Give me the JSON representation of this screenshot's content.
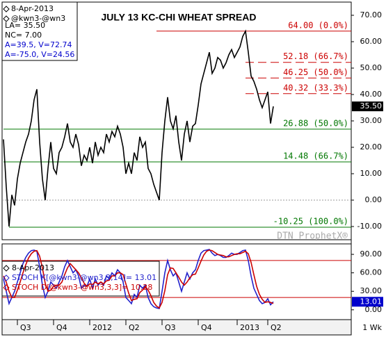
{
  "chart_data": [
    {
      "type": "line",
      "title": "JULY 13 KC-CHI WHEAT SPREAD",
      "watermark": "DTN ProphetX®",
      "info": [
        "8-Apr-2013",
        "@kwn3-@wn3",
        "LA= 35.50",
        "NC= 7.00",
        "A=39.5, V=72.74",
        "A=-75.0, V=24.56"
      ],
      "interval": "1 Wk",
      "xticks": [
        {
          "value": 5,
          "label": "Q3"
        },
        {
          "value": 18,
          "label": "Q4"
        },
        {
          "value": 31,
          "label": "2012"
        },
        {
          "value": 44,
          "label": "Q2"
        },
        {
          "value": 57,
          "label": "Q3"
        },
        {
          "value": 70,
          "label": "Q4"
        },
        {
          "value": 84,
          "label": "2013"
        },
        {
          "value": 95,
          "label": "Q2"
        }
      ],
      "series": [
        {
          "color": "#000000",
          "values": [
            23,
            5,
            -10,
            2,
            -2,
            8,
            14,
            18,
            22,
            25,
            30,
            38,
            42,
            22,
            8,
            0,
            12,
            22,
            12,
            10,
            18,
            20,
            24,
            29,
            22,
            20,
            25,
            21,
            13,
            17,
            15,
            20,
            14,
            22,
            17,
            20,
            18,
            25,
            22,
            26,
            24,
            28,
            25,
            20,
            10,
            14,
            10,
            18,
            15,
            24,
            20,
            22,
            12,
            10,
            6,
            3,
            0,
            18,
            30,
            39,
            30,
            27,
            32,
            22,
            15,
            25,
            30,
            22,
            28,
            29,
            36,
            44,
            48,
            52,
            56,
            48,
            50,
            54,
            53,
            50,
            52,
            55,
            57,
            54,
            56,
            58,
            62,
            64,
            56,
            47,
            45,
            42,
            38,
            35,
            38,
            41,
            29,
            35.5
          ],
          "last_label": "35.50"
        }
      ],
      "ylim": [
        -15,
        75
      ],
      "yticks": [
        {
          "value": -10,
          "label": "-10.00"
        },
        {
          "value": 0,
          "label": "0.00"
        },
        {
          "value": 10,
          "label": "10.00"
        },
        {
          "value": 20,
          "label": "20.00"
        },
        {
          "value": 30,
          "label": "30.00"
        },
        {
          "value": 40,
          "label": "40.00"
        },
        {
          "value": 50,
          "label": "50.00"
        },
        {
          "value": 60,
          "label": "60.00"
        },
        {
          "value": 70,
          "label": "70.00"
        }
      ],
      "levels": [
        {
          "value": 64,
          "label": "64.00 (0.0%)",
          "color": "#cc0000",
          "dashed": false,
          "start": 55
        },
        {
          "value": 52.18,
          "label": "52.18 (66.7%)",
          "color": "#cc0000",
          "dashed": true,
          "start": 87
        },
        {
          "value": 46.25,
          "label": "46.25 (50.0%)",
          "color": "#cc0000",
          "dashed": true,
          "start": 87
        },
        {
          "value": 40.32,
          "label": "40.32 (33.3%)",
          "color": "#cc0000",
          "dashed": true,
          "start": 87
        },
        {
          "value": 26.88,
          "label": "26.88 (50.0%)",
          "color": "#007700",
          "dashed": false,
          "start": 0
        },
        {
          "value": 14.48,
          "label": "14.48 (66.7%)",
          "color": "#007700",
          "dashed": false,
          "start": 0
        },
        {
          "value": -10.25,
          "label": "-10.25 (100.0%)",
          "color": "#007700",
          "dashed": false,
          "start": 2
        }
      ]
    },
    {
      "type": "line",
      "legend": [
        "8-Apr-2013",
        "STOCH K[@kwn3-@wn3,3,14]= 13.01",
        "STOCH D[@kwn3-@wn3,3,3]= 10.28"
      ],
      "series": [
        {
          "color": "#2222cc",
          "values": [
            50,
            30,
            10,
            20,
            30,
            45,
            60,
            75,
            85,
            92,
            96,
            97,
            95,
            70,
            40,
            20,
            30,
            45,
            40,
            35,
            45,
            55,
            70,
            80,
            70,
            60,
            65,
            55,
            35,
            40,
            38,
            50,
            35,
            50,
            40,
            45,
            40,
            55,
            50,
            60,
            55,
            65,
            60,
            45,
            20,
            15,
            10,
            25,
            20,
            40,
            35,
            40,
            20,
            10,
            5,
            3,
            2,
            30,
            60,
            80,
            65,
            55,
            60,
            45,
            30,
            45,
            60,
            50,
            60,
            65,
            80,
            92,
            96,
            97,
            98,
            92,
            88,
            90,
            88,
            85,
            85,
            88,
            92,
            90,
            90,
            93,
            96,
            97,
            80,
            55,
            35,
            25,
            15,
            10,
            12,
            18,
            8,
            13.01
          ]
        },
        {
          "color": "#cc0000",
          "values": [
            55,
            45,
            30,
            20,
            20,
            32,
            45,
            60,
            73,
            84,
            91,
            95,
            96,
            87,
            68,
            43,
            30,
            32,
            38,
            40,
            40,
            45,
            57,
            68,
            75,
            70,
            65,
            60,
            52,
            43,
            38,
            42,
            41,
            45,
            42,
            45,
            42,
            47,
            48,
            55,
            55,
            60,
            60,
            57,
            42,
            27,
            15,
            17,
            18,
            28,
            32,
            38,
            32,
            23,
            12,
            6,
            3,
            12,
            31,
            57,
            68,
            67,
            60,
            53,
            45,
            40,
            45,
            52,
            57,
            58,
            68,
            79,
            89,
            95,
            97,
            96,
            93,
            90,
            89,
            88,
            86,
            86,
            88,
            90,
            91,
            91,
            93,
            95,
            91,
            77,
            57,
            38,
            25,
            17,
            12,
            13,
            12,
            10.28
          ]
        }
      ],
      "ylim": [
        -16,
        107
      ],
      "yticks": [
        {
          "value": 0,
          "label": "0.00"
        },
        {
          "value": 30,
          "label": "30.00"
        },
        {
          "value": 60,
          "label": "60.00"
        },
        {
          "value": 90,
          "label": "90.00"
        }
      ],
      "bands": [
        80,
        20
      ],
      "band_color": "#cc0000"
    }
  ]
}
